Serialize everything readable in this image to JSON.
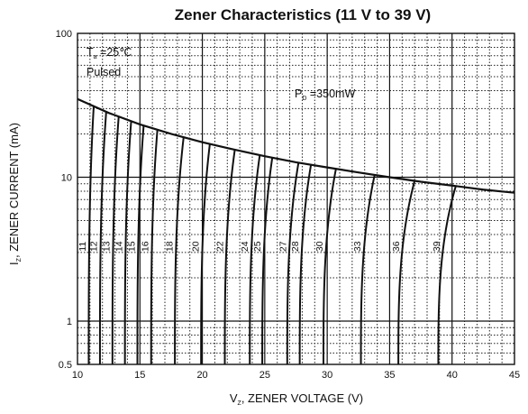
{
  "chart_data": {
    "type": "line",
    "title": "Zener Characteristics (11 V to 39 V)",
    "xlabel": {
      "main": "V",
      "sub": "Z",
      "rest": ", ZENER VOLTAGE (V)"
    },
    "ylabel": {
      "main": "I",
      "sub": "Z",
      "rest": ", ZENER CURRENT (mA)"
    },
    "x_scale": "linear",
    "y_scale": "log",
    "xlim": [
      10,
      45
    ],
    "ylim": [
      0.5,
      100
    ],
    "x_ticks": [
      "10",
      "15",
      "20",
      "25",
      "30",
      "35",
      "40",
      "45"
    ],
    "y_ticks": [
      {
        "value": 0.5,
        "label": "0.5"
      },
      {
        "value": 1,
        "label": "1"
      },
      {
        "value": 10,
        "label": "10"
      },
      {
        "value": 100,
        "label": "100"
      }
    ],
    "grid": true,
    "annotations": {
      "ta": {
        "main": "T",
        "sub": "a",
        "rest": " =25℃"
      },
      "pulsed": "Pulsed",
      "pd": {
        "main": "P",
        "sub": "D",
        "rest": " =350mW"
      }
    },
    "power_limit": {
      "label": "P_D = 350mW",
      "x": [
        10.0,
        12.5,
        15.0,
        17.5,
        20.0,
        22.5,
        25.0,
        27.5,
        30.0,
        32.5,
        35.0,
        37.5,
        40.0,
        42.5,
        45.0
      ],
      "y": [
        35.0,
        28.0,
        23.3,
        20.0,
        17.5,
        15.6,
        14.0,
        12.7,
        11.7,
        10.8,
        10.0,
        9.3,
        8.75,
        8.2,
        7.8
      ]
    },
    "series": [
      {
        "name": "11",
        "vz_low": 10.9,
        "vz_high": 11.3
      },
      {
        "name": "12",
        "vz_low": 11.8,
        "vz_high": 12.3
      },
      {
        "name": "13",
        "vz_low": 12.8,
        "vz_high": 13.3
      },
      {
        "name": "14",
        "vz_low": 13.8,
        "vz_high": 14.3
      },
      {
        "name": "15",
        "vz_low": 14.8,
        "vz_high": 15.3
      },
      {
        "name": "16",
        "vz_low": 15.9,
        "vz_high": 16.4
      },
      {
        "name": "18",
        "vz_low": 17.8,
        "vz_high": 18.5
      },
      {
        "name": "20",
        "vz_low": 19.9,
        "vz_high": 20.6
      },
      {
        "name": "22",
        "vz_low": 21.8,
        "vz_high": 22.6
      },
      {
        "name": "24",
        "vz_low": 23.8,
        "vz_high": 24.6
      },
      {
        "name": "25",
        "vz_low": 24.8,
        "vz_high": 25.6
      },
      {
        "name": "27",
        "vz_low": 26.8,
        "vz_high": 27.7
      },
      {
        "name": "28",
        "vz_low": 27.8,
        "vz_high": 28.7
      },
      {
        "name": "30",
        "vz_low": 29.7,
        "vz_high": 30.7
      },
      {
        "name": "33",
        "vz_low": 32.7,
        "vz_high": 33.8
      },
      {
        "name": "36",
        "vz_low": 35.7,
        "vz_high": 37.0
      },
      {
        "name": "39",
        "vz_low": 38.9,
        "vz_high": 40.3
      }
    ],
    "curve_label_y": 3.3
  }
}
